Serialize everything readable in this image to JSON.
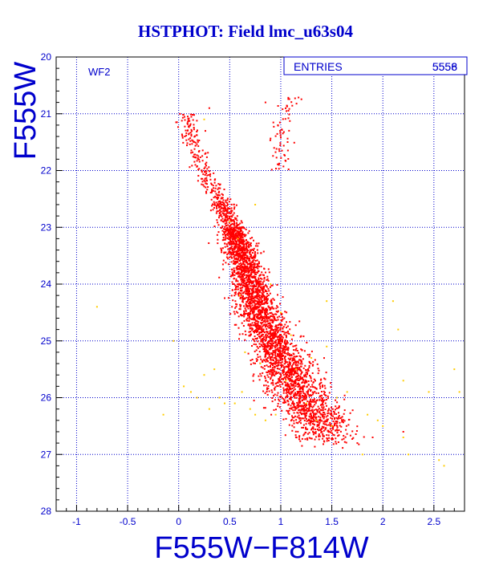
{
  "chart_data": {
    "type": "scatter",
    "title": "HSTPHOT: Field lmc_u63s04",
    "xlabel": "F555W−F814W",
    "ylabel": "F555W",
    "xlim": [
      -1.2,
      2.8
    ],
    "ylim": [
      28,
      20
    ],
    "y_inverted": true,
    "xticks": [
      -1,
      -0.5,
      0,
      0.5,
      1,
      1.5,
      2,
      2.5
    ],
    "xtick_labels": [
      "-1",
      "-0.5",
      "0",
      "0.5",
      "1",
      "1.5",
      "2",
      "2.5"
    ],
    "yticks": [
      20,
      21,
      22,
      23,
      24,
      25,
      26,
      27,
      28
    ],
    "ytick_labels": [
      "20",
      "21",
      "22",
      "23",
      "24",
      "25",
      "26",
      "27",
      "28"
    ],
    "grid": true,
    "annotation": "WF2",
    "stats_box": {
      "label": "ENTRIES",
      "value_a": "5558",
      "value_b": "5556"
    },
    "series": [
      {
        "color": "#ff0000",
        "approx_count": 5556,
        "sequence_ridge": [
          {
            "y": 21.0,
            "x": 0.08
          },
          {
            "y": 21.5,
            "x": 0.12
          },
          {
            "y": 22.0,
            "x": 0.25
          },
          {
            "y": 22.5,
            "x": 0.4
          },
          {
            "y": 23.0,
            "x": 0.52
          },
          {
            "y": 23.5,
            "x": 0.62
          },
          {
            "y": 24.0,
            "x": 0.7
          },
          {
            "y": 24.5,
            "x": 0.8
          },
          {
            "y": 25.0,
            "x": 0.92
          },
          {
            "y": 25.5,
            "x": 1.05
          },
          {
            "y": 26.0,
            "x": 1.2
          },
          {
            "y": 26.5,
            "x": 1.42
          }
        ],
        "giant_branch": [
          {
            "y": 20.7,
            "x": 1.12
          },
          {
            "y": 21.0,
            "x": 1.05
          },
          {
            "y": 21.5,
            "x": 1.0
          },
          {
            "y": 22.0,
            "x": 1.0
          }
        ],
        "outliers": [
          {
            "x": 1.75,
            "y": 26.8
          },
          {
            "x": 1.9,
            "y": 26.7
          },
          {
            "x": 0.3,
            "y": 20.9
          },
          {
            "x": 0.85,
            "y": 20.8
          },
          {
            "x": 2.2,
            "y": 26.6
          }
        ]
      },
      {
        "color": "#ffcc00",
        "approx_count": 80,
        "points": [
          {
            "x": -0.8,
            "y": 24.4
          },
          {
            "x": -0.15,
            "y": 26.3
          },
          {
            "x": 0.05,
            "y": 25.8
          },
          {
            "x": 0.12,
            "y": 25.9
          },
          {
            "x": 0.18,
            "y": 26.0
          },
          {
            "x": 0.25,
            "y": 25.6
          },
          {
            "x": 0.35,
            "y": 25.5
          },
          {
            "x": 0.3,
            "y": 26.2
          },
          {
            "x": 0.45,
            "y": 26.1
          },
          {
            "x": 0.55,
            "y": 26.1
          },
          {
            "x": 0.62,
            "y": 25.9
          },
          {
            "x": 0.7,
            "y": 26.2
          },
          {
            "x": 0.75,
            "y": 26.3
          },
          {
            "x": 0.85,
            "y": 26.4
          },
          {
            "x": 0.95,
            "y": 26.3
          },
          {
            "x": 1.05,
            "y": 25.7
          },
          {
            "x": 1.15,
            "y": 25.5
          },
          {
            "x": 1.3,
            "y": 25.3
          },
          {
            "x": 1.45,
            "y": 25.1
          },
          {
            "x": 1.55,
            "y": 26.0
          },
          {
            "x": 1.65,
            "y": 25.9
          },
          {
            "x": 1.85,
            "y": 26.3
          },
          {
            "x": 1.95,
            "y": 26.4
          },
          {
            "x": 2.15,
            "y": 24.8
          },
          {
            "x": 2.2,
            "y": 25.7
          },
          {
            "x": 2.2,
            "y": 26.7
          },
          {
            "x": 2.25,
            "y": 27.0
          },
          {
            "x": 2.45,
            "y": 25.9
          },
          {
            "x": 2.55,
            "y": 27.1
          },
          {
            "x": 2.6,
            "y": 27.2
          },
          {
            "x": 2.7,
            "y": 25.5
          },
          {
            "x": 2.75,
            "y": 25.9
          },
          {
            "x": 2.1,
            "y": 24.3
          },
          {
            "x": 1.45,
            "y": 24.3
          },
          {
            "x": 0.25,
            "y": 21.1
          },
          {
            "x": 0.75,
            "y": 22.6
          },
          {
            "x": 0.5,
            "y": 22.9
          },
          {
            "x": 0.58,
            "y": 23.2
          },
          {
            "x": 0.9,
            "y": 24.0
          },
          {
            "x": 1.0,
            "y": 24.5
          },
          {
            "x": 1.1,
            "y": 24.9
          },
          {
            "x": 0.6,
            "y": 24.2
          },
          {
            "x": 0.8,
            "y": 25.4
          },
          {
            "x": 1.25,
            "y": 26.1
          },
          {
            "x": 1.35,
            "y": 26.4
          },
          {
            "x": 0.4,
            "y": 26.0
          },
          {
            "x": 0.65,
            "y": 25.2
          },
          {
            "x": 1.5,
            "y": 26.5
          },
          {
            "x": 2.0,
            "y": 26.5
          },
          {
            "x": 1.8,
            "y": 27.0
          },
          {
            "x": -0.05,
            "y": 25.0
          }
        ]
      }
    ]
  }
}
